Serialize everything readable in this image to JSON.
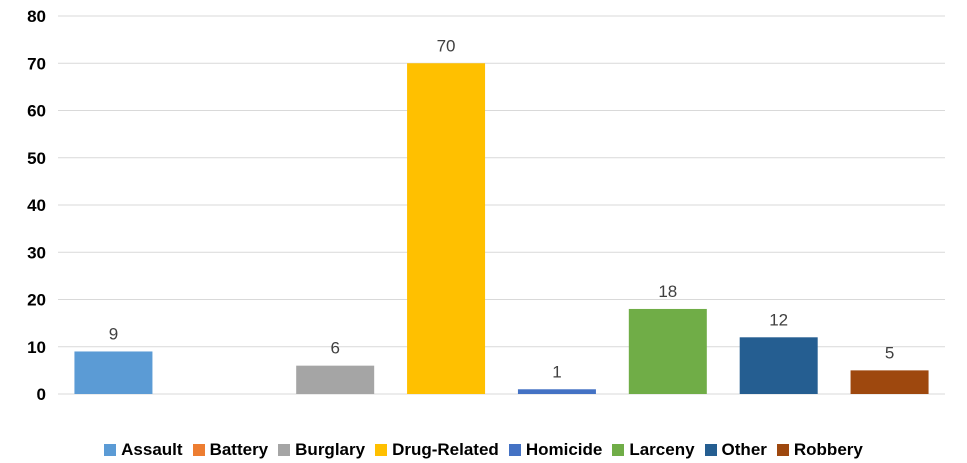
{
  "chart_data": {
    "type": "bar",
    "categories": [
      "Assault",
      "Battery",
      "Burglary",
      "Drug-Related",
      "Homicide",
      "Larceny",
      "Other",
      "Robbery"
    ],
    "values": [
      9,
      0,
      6,
      70,
      1,
      18,
      12,
      5
    ],
    "data_labels": [
      "9",
      "",
      "6",
      "70",
      "1",
      "18",
      "12",
      "5"
    ],
    "colors": [
      "#5b9bd5",
      "#ed7d31",
      "#a5a5a5",
      "#ffc000",
      "#4472c4",
      "#70ad47",
      "#255e91",
      "#9e480e"
    ],
    "title": "",
    "xlabel": "",
    "ylabel": "",
    "ylim": [
      0,
      80
    ],
    "yticks": [
      0,
      10,
      20,
      30,
      40,
      50,
      60,
      70,
      80
    ],
    "grid": true,
    "legend_position": "bottom"
  }
}
